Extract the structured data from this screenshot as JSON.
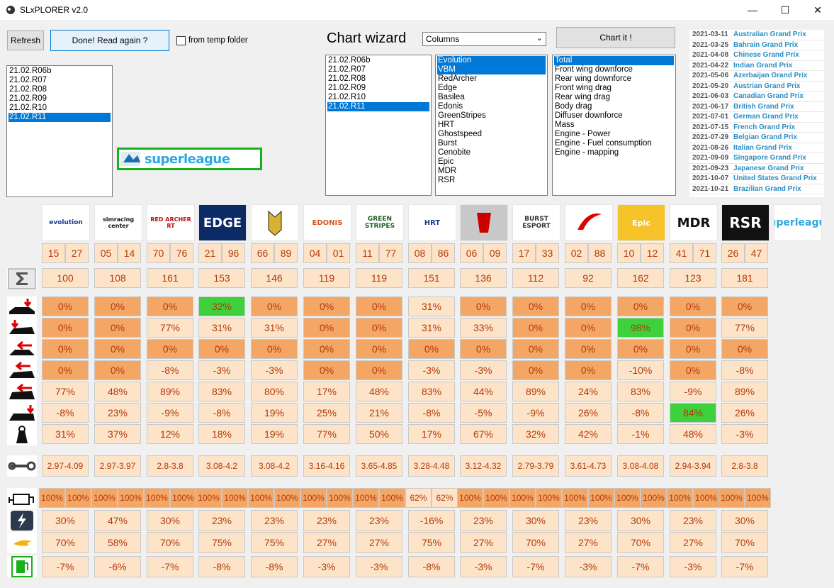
{
  "window": {
    "title": "SLxPLORER v2.0",
    "minimize": "—",
    "maximize": "☐",
    "close": "✕"
  },
  "toolbar": {
    "refresh_label": "Refresh",
    "read_again_label": "Done! Read again ?",
    "temp_folder_label": "from temp folder",
    "temp_folder_checked": false
  },
  "versions_list": {
    "items": [
      "21.02.R06b",
      "21.02.R07",
      "21.02.R08",
      "21.02.R09",
      "21.02.R10",
      "21.02.R11"
    ],
    "selected": [
      5
    ]
  },
  "chart_wizard": {
    "title": "Chart wizard",
    "chart_type": "Columns",
    "chart_button": "Chart it !",
    "versions": {
      "items": [
        "21.02.R06b",
        "21.02.R07",
        "21.02.R08",
        "21.02.R09",
        "21.02.R10",
        "21.02.R11"
      ],
      "selected": [
        5
      ]
    },
    "teams": {
      "items": [
        "Evolution",
        "VBM",
        "RedArcher",
        "Edge",
        "Basilea",
        "Edonis",
        "GreenStripes",
        "HRT",
        "Ghostspeed",
        "Burst",
        "Cenobite",
        "Epic",
        "MDR",
        "RSR"
      ],
      "selected": [
        0,
        1
      ]
    },
    "metrics": {
      "items": [
        "Total",
        "Front wing downforce",
        "Rear wing downforce",
        "Front wing drag",
        "Rear wing drag",
        "Body drag",
        "Diffuser downforce",
        "Mass",
        "Engine - Power",
        "Engine - Fuel consumption",
        "Engine - mapping"
      ],
      "selected": [
        0
      ]
    }
  },
  "schedule": [
    {
      "date": "2021-03-11",
      "name": "Australian Grand Prix"
    },
    {
      "date": "2021-03-25",
      "name": "Bahrain Grand Prix"
    },
    {
      "date": "2021-04-08",
      "name": "Chinese Grand Prix"
    },
    {
      "date": "2021-04-22",
      "name": "Indian Grand Prix"
    },
    {
      "date": "2021-05-06",
      "name": "Azerbaijan Grand Prix"
    },
    {
      "date": "2021-05-20",
      "name": "Austrian Grand Prix"
    },
    {
      "date": "2021-06-03",
      "name": "Canadian Grand Prix"
    },
    {
      "date": "2021-06-17",
      "name": "British Grand Prix"
    },
    {
      "date": "2021-07-01",
      "name": "German Grand Prix"
    },
    {
      "date": "2021-07-15",
      "name": "French Grand Prix"
    },
    {
      "date": "2021-07-29",
      "name": "Belgian Grand Prix"
    },
    {
      "date": "2021-08-26",
      "name": "Italian Grand Prix"
    },
    {
      "date": "2021-09-09",
      "name": "Singapore Grand Prix"
    },
    {
      "date": "2021-09-23",
      "name": "Japanese Grand Prix"
    },
    {
      "date": "2021-10-07",
      "name": "United States Grand Prix"
    },
    {
      "date": "2021-10-21",
      "name": "Brazilian Grand Prix"
    }
  ],
  "brand_logo": "superleague",
  "team_logo_texts": [
    "evolution",
    "simracing center",
    "RED ARCHER RT",
    "EDGE",
    "",
    "EDONIS",
    "GREEN STRIPES",
    "HRT",
    "",
    "BURST ESPORT",
    "",
    "Epic",
    "MDR",
    "RSR",
    "superleague"
  ],
  "teams": [
    {
      "nums": [
        "15",
        "27"
      ],
      "total": "100",
      "fwdf": "0%",
      "rwdf": "0%",
      "fwdr": "0%",
      "rwdr": "0%",
      "body": "77%",
      "diff": "-8%",
      "mass": "31%",
      "setup": "2.97-4.09",
      "map": [
        "100%",
        "100%"
      ],
      "power": "30%",
      "fuel": "70%",
      "cons": "-7%"
    },
    {
      "nums": [
        "05",
        "14"
      ],
      "total": "108",
      "fwdf": "0%",
      "rwdf": "0%",
      "fwdr": "0%",
      "rwdr": "0%",
      "body": "48%",
      "diff": "23%",
      "mass": "37%",
      "setup": "2.97-3.97",
      "map": [
        "100%",
        "100%"
      ],
      "power": "47%",
      "fuel": "58%",
      "cons": "-6%"
    },
    {
      "nums": [
        "70",
        "76"
      ],
      "total": "161",
      "fwdf": "0%",
      "rwdf": "77%",
      "fwdr": "0%",
      "rwdr": "-8%",
      "body": "89%",
      "diff": "-9%",
      "mass": "12%",
      "setup": "2.8-3.8",
      "map": [
        "100%",
        "100%"
      ],
      "power": "30%",
      "fuel": "70%",
      "cons": "-7%"
    },
    {
      "nums": [
        "21",
        "96"
      ],
      "total": "153",
      "fwdf": "32%",
      "rwdf": "31%",
      "fwdr": "0%",
      "rwdr": "-3%",
      "body": "83%",
      "diff": "-8%",
      "mass": "18%",
      "setup": "3.08-4.2",
      "map": [
        "100%",
        "100%"
      ],
      "power": "23%",
      "fuel": "75%",
      "cons": "-8%"
    },
    {
      "nums": [
        "66",
        "89"
      ],
      "total": "146",
      "fwdf": "0%",
      "rwdf": "31%",
      "fwdr": "0%",
      "rwdr": "-3%",
      "body": "80%",
      "diff": "19%",
      "mass": "19%",
      "setup": "3.08-4.2",
      "map": [
        "100%",
        "100%"
      ],
      "power": "23%",
      "fuel": "75%",
      "cons": "-8%"
    },
    {
      "nums": [
        "04",
        "01"
      ],
      "total": "119",
      "fwdf": "0%",
      "rwdf": "0%",
      "fwdr": "0%",
      "rwdr": "0%",
      "body": "17%",
      "diff": "25%",
      "mass": "77%",
      "setup": "3.16-4.16",
      "map": [
        "100%",
        "100%"
      ],
      "power": "23%",
      "fuel": "27%",
      "cons": "-3%"
    },
    {
      "nums": [
        "11",
        "77"
      ],
      "total": "119",
      "fwdf": "0%",
      "rwdf": "0%",
      "fwdr": "0%",
      "rwdr": "0%",
      "body": "48%",
      "diff": "21%",
      "mass": "50%",
      "setup": "3.65-4.85",
      "map": [
        "100%",
        "100%"
      ],
      "power": "23%",
      "fuel": "27%",
      "cons": "-3%"
    },
    {
      "nums": [
        "08",
        "86"
      ],
      "total": "151",
      "fwdf": "31%",
      "rwdf": "31%",
      "fwdr": "0%",
      "rwdr": "-3%",
      "body": "83%",
      "diff": "-8%",
      "mass": "17%",
      "setup": "3.28-4.48",
      "map": [
        "62%",
        "62%"
      ],
      "power": "-16%",
      "fuel": "75%",
      "cons": "-8%"
    },
    {
      "nums": [
        "06",
        "09"
      ],
      "total": "136",
      "fwdf": "0%",
      "rwdf": "33%",
      "fwdr": "0%",
      "rwdr": "-3%",
      "body": "44%",
      "diff": "-5%",
      "mass": "67%",
      "setup": "3.12-4.32",
      "map": [
        "100%",
        "100%"
      ],
      "power": "23%",
      "fuel": "27%",
      "cons": "-3%"
    },
    {
      "nums": [
        "17",
        "33"
      ],
      "total": "112",
      "fwdf": "0%",
      "rwdf": "0%",
      "fwdr": "0%",
      "rwdr": "0%",
      "body": "89%",
      "diff": "-9%",
      "mass": "32%",
      "setup": "2.79-3.79",
      "map": [
        "100%",
        "100%"
      ],
      "power": "30%",
      "fuel": "70%",
      "cons": "-7%"
    },
    {
      "nums": [
        "02",
        "88"
      ],
      "total": "92",
      "fwdf": "0%",
      "rwdf": "0%",
      "fwdr": "0%",
      "rwdr": "0%",
      "body": "24%",
      "diff": "26%",
      "mass": "42%",
      "setup": "3.61-4.73",
      "map": [
        "100%",
        "100%"
      ],
      "power": "23%",
      "fuel": "27%",
      "cons": "-3%"
    },
    {
      "nums": [
        "10",
        "12"
      ],
      "total": "162",
      "fwdf": "0%",
      "rwdf": "98%",
      "fwdr": "0%",
      "rwdr": "-10%",
      "body": "83%",
      "diff": "-8%",
      "mass": "-1%",
      "setup": "3.08-4.08",
      "map": [
        "100%",
        "100%"
      ],
      "power": "30%",
      "fuel": "70%",
      "cons": "-7%"
    },
    {
      "nums": [
        "41",
        "71"
      ],
      "total": "123",
      "fwdf": "0%",
      "rwdf": "0%",
      "fwdr": "0%",
      "rwdr": "0%",
      "body": "-9%",
      "diff": "84%",
      "mass": "48%",
      "setup": "2.94-3.94",
      "map": [
        "100%",
        "100%"
      ],
      "power": "23%",
      "fuel": "27%",
      "cons": "-3%"
    },
    {
      "nums": [
        "26",
        "47"
      ],
      "total": "181",
      "fwdf": "0%",
      "rwdf": "77%",
      "fwdr": "0%",
      "rwdr": "-8%",
      "body": "89%",
      "diff": "26%",
      "mass": "-3%",
      "setup": "2.8-3.8",
      "map": [
        "100%",
        "100%"
      ],
      "power": "30%",
      "fuel": "70%",
      "cons": "-7%"
    }
  ],
  "colors": {
    "light_cell": "#fde4c8",
    "dark_cell": "#f4a664",
    "highlight_cell": "#3ed13b",
    "value_text": "#b33a0b",
    "selection": "#0078d7"
  }
}
